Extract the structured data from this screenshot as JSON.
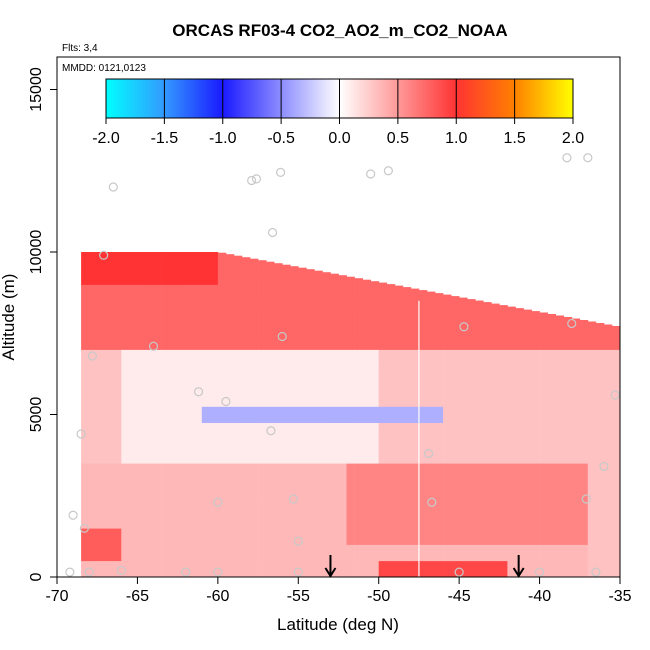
{
  "chart_data": {
    "type": "heatmap",
    "title": "ORCAS RF03-4 CO2_AO2_m_CO2_NOAA",
    "notes": {
      "flights": "Flts: 3,4",
      "dates": "MMDD: 0121,0123"
    },
    "xlabel": "Latitude (deg N)",
    "ylabel": "Altitude (m)",
    "xlim": [
      -70,
      -35
    ],
    "ylim": [
      0,
      16000
    ],
    "x_ticks": [
      -70,
      -65,
      -60,
      -55,
      -50,
      -45,
      -40,
      -35
    ],
    "x_tick_labels": [
      "-70",
      "-65",
      "-60",
      "-55",
      "-50",
      "-45",
      "-40",
      "-35"
    ],
    "y_ticks": [
      0,
      5000,
      10000,
      15000
    ],
    "y_tick_labels": [
      "0",
      "5000",
      "10000",
      "15000"
    ],
    "colorbar": {
      "range": [
        -2.0,
        2.0
      ],
      "ticks": [
        -2.0,
        -1.5,
        -1.0,
        -0.5,
        0.0,
        0.5,
        1.0,
        1.5,
        2.0
      ],
      "tick_labels": [
        "-2.0",
        "-1.5",
        "-1.0",
        "-0.5",
        "0.0",
        "0.5",
        "1.0",
        "1.5",
        "2.0"
      ],
      "colors": [
        "#00ffff",
        "#3399ff",
        "#1a1aff",
        "#ffffff",
        "#ff3333",
        "#ff8000",
        "#ffff00"
      ],
      "stops": [
        -2.0,
        -1.5,
        -1.0,
        0.0,
        1.0,
        1.5,
        2.0
      ]
    },
    "field_regions": [
      {
        "name": "upper-troposphere-band",
        "lat": [
          -68.5,
          -35
        ],
        "alt": [
          7000,
          10000
        ],
        "value": 0.75
      },
      {
        "name": "southern-tropopause-patch",
        "lat": [
          -68.5,
          -60
        ],
        "alt": [
          9000,
          10000
        ],
        "value": 1.0
      },
      {
        "name": "mid-level-white",
        "lat": [
          -66,
          -50
        ],
        "alt": [
          3500,
          7000
        ],
        "value": 0.1
      },
      {
        "name": "mid-level-negative-layer",
        "lat": [
          -61,
          -46
        ],
        "alt": [
          4800,
          5300
        ],
        "value": -0.35
      },
      {
        "name": "lower-troposphere-pink",
        "lat": [
          -69,
          -37
        ],
        "alt": [
          0,
          3500
        ],
        "value": 0.35
      },
      {
        "name": "northern-lower-red",
        "lat": [
          -52,
          -37
        ],
        "alt": [
          1000,
          3500
        ],
        "value": 0.6
      },
      {
        "name": "surface-red",
        "lat": [
          -50,
          -42
        ],
        "alt": [
          0,
          400
        ],
        "value": 0.9
      },
      {
        "name": "southern-surface-red",
        "lat": [
          -69,
          -66
        ],
        "alt": [
          500,
          1500
        ],
        "value": 0.8
      }
    ],
    "sample_points": [
      {
        "lat": -67.1,
        "alt": 9900
      },
      {
        "lat": -66.5,
        "alt": 12000
      },
      {
        "lat": -67.8,
        "alt": 6800
      },
      {
        "lat": -68.5,
        "alt": 4400
      },
      {
        "lat": -69.0,
        "alt": 1900
      },
      {
        "lat": -68.3,
        "alt": 1500
      },
      {
        "lat": -69.2,
        "alt": 150
      },
      {
        "lat": -68.0,
        "alt": 150
      },
      {
        "lat": -66.0,
        "alt": 200
      },
      {
        "lat": -62.0,
        "alt": 150
      },
      {
        "lat": -60.0,
        "alt": 150
      },
      {
        "lat": -64.0,
        "alt": 7100
      },
      {
        "lat": -61.2,
        "alt": 5700
      },
      {
        "lat": -59.5,
        "alt": 5400
      },
      {
        "lat": -60.0,
        "alt": 2300
      },
      {
        "lat": -56.7,
        "alt": 4500
      },
      {
        "lat": -55.3,
        "alt": 2400
      },
      {
        "lat": -55.0,
        "alt": 1100
      },
      {
        "lat": -55.0,
        "alt": 150
      },
      {
        "lat": -56.0,
        "alt": 7400
      },
      {
        "lat": -56.6,
        "alt": 10600
      },
      {
        "lat": -57.9,
        "alt": 12200
      },
      {
        "lat": -57.6,
        "alt": 12250
      },
      {
        "lat": -56.1,
        "alt": 12450
      },
      {
        "lat": -50.5,
        "alt": 12400
      },
      {
        "lat": -49.4,
        "alt": 12500
      },
      {
        "lat": -46.9,
        "alt": 3800
      },
      {
        "lat": -46.7,
        "alt": 2300
      },
      {
        "lat": -45.0,
        "alt": 150
      },
      {
        "lat": -44.7,
        "alt": 7700
      },
      {
        "lat": -40.0,
        "alt": 150
      },
      {
        "lat": -38.0,
        "alt": 7800
      },
      {
        "lat": -38.3,
        "alt": 12900
      },
      {
        "lat": -37.0,
        "alt": 12900
      },
      {
        "lat": -37.1,
        "alt": 2400
      },
      {
        "lat": -36.0,
        "alt": 3400
      },
      {
        "lat": -35.3,
        "alt": 5600
      },
      {
        "lat": -36.5,
        "alt": 150
      }
    ],
    "arrows": [
      {
        "lat": -53.0
      },
      {
        "lat": -41.3
      }
    ],
    "vertical_line_lat": -47.5
  }
}
